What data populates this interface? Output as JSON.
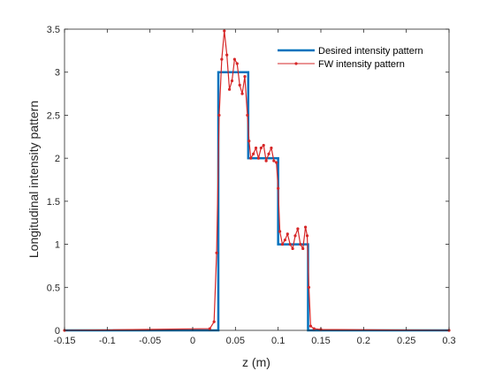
{
  "chart_data": {
    "type": "line",
    "xlabel": "z (m)",
    "ylabel": "Longitudinal intensity pattern",
    "xlim": [
      -0.15,
      0.3
    ],
    "ylim": [
      0,
      3.5
    ],
    "xticks": [
      "-0.15",
      "-0.1",
      "-0.05",
      "0",
      "0.05",
      "0.1",
      "0.15",
      "0.2",
      "0.25",
      "0.3"
    ],
    "yticks": [
      "0",
      "0.5",
      "1",
      "1.5",
      "2",
      "2.5",
      "3",
      "3.5"
    ],
    "grid": false,
    "legend_position": "top-right",
    "series": [
      {
        "name": "Desired intensity pattern",
        "color": "#0072BD",
        "style": "step",
        "x": [
          -0.15,
          0.03,
          0.03,
          0.065,
          0.065,
          0.1,
          0.1,
          0.135,
          0.135,
          0.3
        ],
        "y": [
          0,
          0,
          3,
          3,
          2,
          2,
          1,
          1,
          0,
          0
        ]
      },
      {
        "name": "FW intensity pattern",
        "color": "#D62728",
        "style": "line-markers",
        "x": [
          -0.15,
          0.02,
          0.025,
          0.028,
          0.031,
          0.034,
          0.037,
          0.04,
          0.043,
          0.046,
          0.049,
          0.052,
          0.055,
          0.058,
          0.061,
          0.064,
          0.066,
          0.068,
          0.071,
          0.074,
          0.077,
          0.08,
          0.083,
          0.086,
          0.089,
          0.092,
          0.095,
          0.098,
          0.1,
          0.102,
          0.105,
          0.108,
          0.111,
          0.114,
          0.117,
          0.12,
          0.123,
          0.126,
          0.129,
          0.132,
          0.134,
          0.136,
          0.138,
          0.142,
          0.15,
          0.3
        ],
        "y": [
          0,
          0.02,
          0.1,
          0.9,
          2.5,
          3.15,
          3.48,
          3.2,
          2.8,
          2.9,
          3.15,
          3.1,
          2.85,
          2.75,
          2.95,
          2.5,
          2.2,
          2.0,
          2.05,
          2.12,
          2.0,
          2.12,
          2.15,
          1.97,
          2.05,
          2.12,
          1.97,
          1.95,
          1.65,
          1.15,
          1.0,
          1.05,
          1.12,
          1.0,
          0.95,
          1.1,
          1.18,
          1.0,
          0.95,
          1.2,
          1.1,
          0.5,
          0.05,
          0.02,
          0.01,
          0
        ]
      }
    ]
  }
}
